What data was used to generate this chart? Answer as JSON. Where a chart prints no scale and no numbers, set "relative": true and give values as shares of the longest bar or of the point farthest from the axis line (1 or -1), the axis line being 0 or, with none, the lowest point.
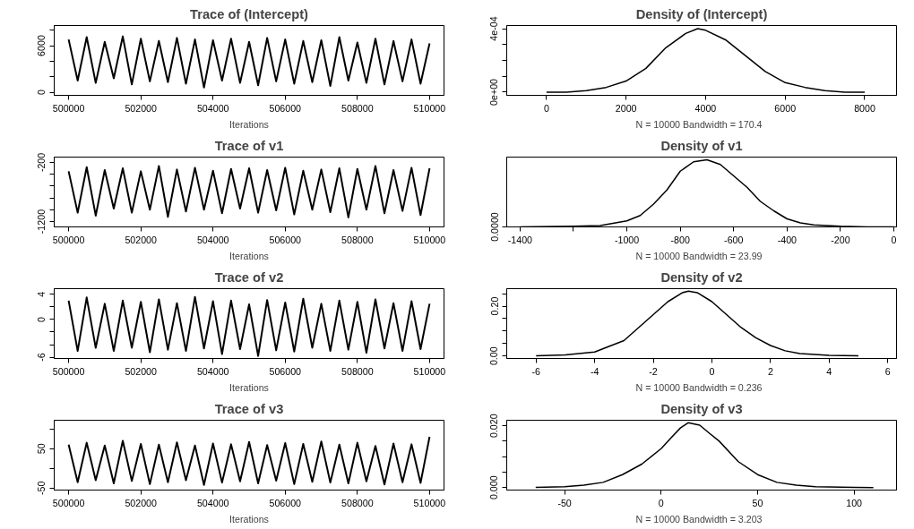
{
  "chart_data": [
    {
      "type": "line",
      "title": "Trace of (Intercept)",
      "xlabel": "Iterations",
      "xlim": [
        499600,
        510400
      ],
      "xticks": [
        500000,
        502000,
        504000,
        506000,
        508000,
        510000
      ],
      "ylim": [
        -400,
        8600
      ],
      "yticks": [
        0,
        {
          "value": 2000,
          "label": null
        },
        {
          "value": 4000,
          "label": null
        },
        6000,
        {
          "value": 8000,
          "label": null
        }
      ],
      "x": [
        500000,
        500250,
        500500,
        500750,
        501000,
        501250,
        501500,
        501750,
        502000,
        502250,
        502500,
        502750,
        503000,
        503250,
        503500,
        503750,
        504000,
        504250,
        504500,
        504750,
        505000,
        505250,
        505500,
        505750,
        506000,
        506250,
        506500,
        506750,
        507000,
        507250,
        507500,
        507750,
        508000,
        508250,
        508500,
        508750,
        509000,
        509250,
        509500,
        509750,
        510000
      ],
      "series": [
        {
          "color": "#000000",
          "values": [
            6800,
            1500,
            7100,
            1200,
            6500,
            1800,
            7200,
            1000,
            6900,
            1400,
            6600,
            1300,
            7000,
            1100,
            6800,
            600,
            6700,
            1500,
            6900,
            1200,
            6500,
            900,
            7000,
            1400,
            6800,
            1100,
            6600,
            1300,
            6700,
            800,
            7100,
            1500,
            6400,
            1200,
            6900,
            1000,
            6600,
            1400,
            6800,
            1100,
            6300
          ]
        }
      ]
    },
    {
      "type": "line",
      "title": "Density of (Intercept)",
      "xlabel": "N = 10000   Bandwidth = 170.4",
      "xlim": [
        -1000,
        8800
      ],
      "xticks": [
        0,
        2000,
        4000,
        6000,
        8000
      ],
      "ylim": [
        -2e-05,
        0.00042
      ],
      "yticks": [
        {
          "value": 0,
          "label": "0e+00"
        },
        {
          "value": 0.0001,
          "label": null
        },
        {
          "value": 0.0002,
          "label": null
        },
        {
          "value": 0.0003,
          "label": null
        },
        {
          "value": 0.0004,
          "label": "4e-04"
        }
      ],
      "x": [
        0,
        500,
        1000,
        1500,
        2000,
        2500,
        3000,
        3500,
        3800,
        4000,
        4500,
        5000,
        5500,
        6000,
        6500,
        7000,
        7500,
        8000
      ],
      "series": [
        {
          "color": "#000000",
          "values": [
            0,
            0,
            1e-05,
            3e-05,
            7e-05,
            0.00015,
            0.00028,
            0.00037,
            0.0004,
            0.00039,
            0.00033,
            0.00023,
            0.00013,
            6e-05,
            3e-05,
            1e-05,
            0,
            0
          ]
        }
      ]
    },
    {
      "type": "line",
      "title": "Trace of v1",
      "xlabel": "Iterations",
      "xlim": [
        499600,
        510400
      ],
      "xticks": [
        500000,
        502000,
        504000,
        506000,
        508000,
        510000
      ],
      "ylim": [
        -1290,
        -110
      ],
      "yticks": [
        -1200,
        {
          "value": -1000,
          "label": null
        },
        {
          "value": -800,
          "label": null
        },
        {
          "value": -600,
          "label": null
        },
        {
          "value": -400,
          "label": null
        },
        -200
      ],
      "x": [
        500000,
        500250,
        500500,
        500750,
        501000,
        501250,
        501500,
        501750,
        502000,
        502250,
        502500,
        502750,
        503000,
        503250,
        503500,
        503750,
        504000,
        504250,
        504500,
        504750,
        505000,
        505250,
        505500,
        505750,
        506000,
        506250,
        506500,
        506750,
        507000,
        507250,
        507500,
        507750,
        508000,
        508250,
        508500,
        508750,
        509000,
        509250,
        509500,
        509750,
        510000
      ],
      "series": [
        {
          "color": "#000000",
          "values": [
            -350,
            -1050,
            -280,
            -1100,
            -330,
            -980,
            -300,
            -1050,
            -350,
            -1000,
            -260,
            -1120,
            -320,
            -1030,
            -290,
            -1000,
            -340,
            -1060,
            -310,
            -980,
            -300,
            -1050,
            -330,
            -1010,
            -290,
            -1080,
            -340,
            -1000,
            -320,
            -1040,
            -300,
            -1130,
            -310,
            -1000,
            -260,
            -1060,
            -330,
            -1020,
            -290,
            -1090,
            -300
          ]
        }
      ]
    },
    {
      "type": "line",
      "title": "Density of v1",
      "xlabel": "N = 10000   Bandwidth = 23.99",
      "xlim": [
        -1450,
        10
      ],
      "xticks": [
        -1400,
        {
          "value": -1200,
          "label": null
        },
        -1000,
        -800,
        -600,
        -400,
        -200,
        0
      ],
      "relative": true,
      "annotations": [
        "0.0000"
      ],
      "x": [
        -1400,
        -1200,
        -1100,
        -1000,
        -950,
        -900,
        -850,
        -800,
        -750,
        -700,
        -650,
        -600,
        -550,
        -500,
        -450,
        -400,
        -350,
        -300,
        -200,
        -100,
        0
      ],
      "series": [
        {
          "color": "#000000",
          "values": [
            0,
            0.01,
            0.02,
            0.09,
            0.17,
            0.34,
            0.55,
            0.83,
            0.97,
            1,
            0.93,
            0.76,
            0.59,
            0.38,
            0.24,
            0.12,
            0.06,
            0.03,
            0.01,
            0,
            0
          ]
        }
      ]
    },
    {
      "type": "line",
      "title": "Trace of v2",
      "xlabel": "Iterations",
      "xlim": [
        499600,
        510400
      ],
      "xticks": [
        500000,
        502000,
        504000,
        506000,
        508000,
        510000
      ],
      "ylim": [
        -6.2,
        4.9
      ],
      "yticks": [
        -6,
        {
          "value": -4,
          "label": null
        },
        {
          "value": -2,
          "label": null
        },
        0,
        {
          "value": 2,
          "label": null
        },
        4
      ],
      "x": [
        500000,
        500250,
        500500,
        500750,
        501000,
        501250,
        501500,
        501750,
        502000,
        502250,
        502500,
        502750,
        503000,
        503250,
        503500,
        503750,
        504000,
        504250,
        504500,
        504750,
        505000,
        505250,
        505500,
        505750,
        506000,
        506250,
        506500,
        506750,
        507000,
        507250,
        507500,
        507750,
        508000,
        508250,
        508500,
        508750,
        509000,
        509250,
        509500,
        509750,
        510000
      ],
      "series": [
        {
          "color": "#000000",
          "values": [
            3,
            -5,
            3.5,
            -4.5,
            2.5,
            -5,
            3,
            -4.5,
            2.8,
            -5.2,
            3.2,
            -4.8,
            2.6,
            -5,
            3.6,
            -4.6,
            2.9,
            -5.5,
            3,
            -4.7,
            2.4,
            -5.8,
            3.1,
            -4.9,
            2.7,
            -5.1,
            3.3,
            -4.5,
            2.5,
            -5,
            3,
            -4.8,
            2.8,
            -5.3,
            3.2,
            -4.6,
            2.6,
            -5,
            2.9,
            -4.7,
            2.5
          ]
        }
      ]
    },
    {
      "type": "line",
      "title": "Density of v2",
      "xlabel": "N = 10000   Bandwidth = 0.236",
      "xlim": [
        -7,
        6.3
      ],
      "xticks": [
        -6,
        -4,
        -2,
        0,
        2,
        4,
        6
      ],
      "ylim": [
        -0.01,
        0.27
      ],
      "yticks": [
        {
          "value": 0,
          "label": "0.00"
        },
        {
          "value": 0.05,
          "label": null
        },
        {
          "value": 0.1,
          "label": null
        },
        {
          "value": 0.15,
          "label": null
        },
        {
          "value": 0.2,
          "label": "0.20"
        },
        {
          "value": 0.25,
          "label": null
        }
      ],
      "x": [
        -6,
        -5,
        -4,
        -3,
        -2.5,
        -2,
        -1.5,
        -1,
        -0.8,
        -0.5,
        0,
        0.5,
        1,
        1.5,
        2,
        2.5,
        3,
        4,
        5
      ],
      "series": [
        {
          "color": "#000000",
          "values": [
            0.001,
            0.004,
            0.016,
            0.062,
            0.114,
            0.166,
            0.218,
            0.254,
            0.26,
            0.254,
            0.218,
            0.166,
            0.114,
            0.073,
            0.042,
            0.021,
            0.01,
            0.003,
            0.001
          ]
        }
      ]
    },
    {
      "type": "line",
      "title": "Trace of v3",
      "xlabel": "Iterations",
      "xlim": [
        499600,
        510400
      ],
      "xticks": [
        500000,
        502000,
        504000,
        506000,
        508000,
        510000
      ],
      "ylim": [
        -55,
        122
      ],
      "yticks": [
        -50,
        {
          "value": 0,
          "label": null
        },
        50,
        {
          "value": 100,
          "label": null
        }
      ],
      "x": [
        500000,
        500250,
        500500,
        500750,
        501000,
        501250,
        501500,
        501750,
        502000,
        502250,
        502500,
        502750,
        503000,
        503250,
        503500,
        503750,
        504000,
        504250,
        504500,
        504750,
        505000,
        505250,
        505500,
        505750,
        506000,
        506250,
        506500,
        506750,
        507000,
        507250,
        507500,
        507750,
        508000,
        508250,
        508500,
        508750,
        509000,
        509250,
        509500,
        509750,
        510000
      ],
      "series": [
        {
          "color": "#000000",
          "values": [
            60,
            -35,
            65,
            -30,
            58,
            -38,
            70,
            -32,
            62,
            -40,
            60,
            -35,
            66,
            -30,
            58,
            -42,
            63,
            -36,
            61,
            -33,
            67,
            -38,
            59,
            -31,
            64,
            -40,
            62,
            -34,
            68,
            -36,
            60,
            -38,
            65,
            -33,
            57,
            -41,
            63,
            -35,
            61,
            -37,
            80
          ]
        }
      ]
    },
    {
      "type": "line",
      "title": "Density of v3",
      "xlabel": "N = 10000   Bandwidth = 3.203",
      "xlim": [
        -80,
        122
      ],
      "xticks": [
        -50,
        0,
        50,
        100
      ],
      "ylim": [
        -0.0008,
        0.0218
      ],
      "yticks": [
        {
          "value": 0,
          "label": "0.000"
        },
        {
          "value": 0.005,
          "label": null
        },
        {
          "value": 0.01,
          "label": null
        },
        {
          "value": 0.015,
          "label": null
        },
        {
          "value": 0.02,
          "label": "0.020"
        }
      ],
      "x": [
        -65,
        -50,
        -40,
        -30,
        -20,
        -10,
        0,
        5,
        10,
        14,
        20,
        25,
        30,
        40,
        50,
        60,
        70,
        80,
        100,
        110
      ],
      "series": [
        {
          "color": "#000000",
          "values": [
            0.0001,
            0.0003,
            0.0008,
            0.0017,
            0.0042,
            0.0076,
            0.0126,
            0.016,
            0.0193,
            0.021,
            0.0202,
            0.0176,
            0.0151,
            0.0084,
            0.0042,
            0.0017,
            0.0008,
            0.0003,
            0.0001,
            0
          ]
        }
      ]
    }
  ]
}
